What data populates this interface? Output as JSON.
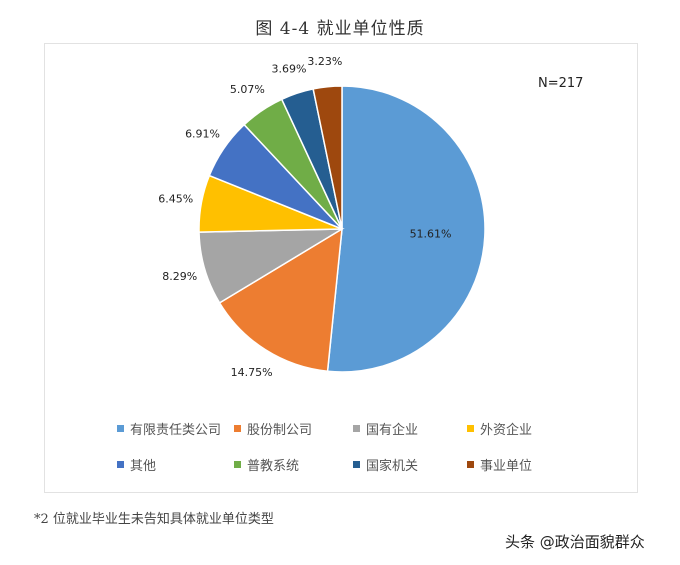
{
  "chart_data": {
    "type": "pie",
    "title": "图 4-4  就业单位性质",
    "annotation": "N=217",
    "start": "12 o'clock, clockwise",
    "legend_position": "bottom",
    "categories": [
      "有限责任类公司",
      "股份制公司",
      "国有企业",
      "外资企业",
      "其他",
      "普教系统",
      "国家机关",
      "事业单位"
    ],
    "values": [
      51.61,
      14.75,
      8.29,
      6.45,
      6.91,
      5.07,
      3.69,
      3.23
    ],
    "labels": [
      "51.61%",
      "14.75%",
      "8.29%",
      "6.45%",
      "6.91%",
      "5.07%",
      "3.69%",
      "3.23%"
    ],
    "colors": [
      "#5b9bd5",
      "#ed7d31",
      "#a5a5a5",
      "#ffc000",
      "#4472c4",
      "#70ad47",
      "#255e91",
      "#9e480e"
    ]
  },
  "footnote": "*2 位就业毕业生未告知具体就业单位类型",
  "watermark": "头条 @政治面貌群众"
}
